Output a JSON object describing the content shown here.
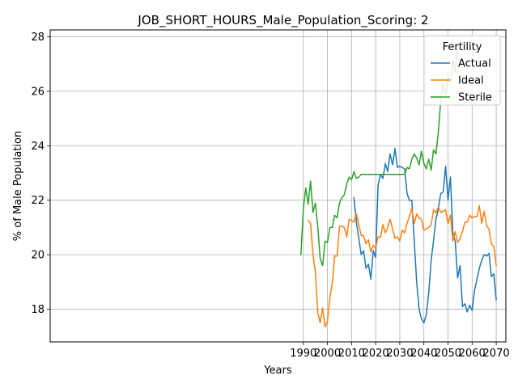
{
  "chart_data": {
    "type": "line",
    "title": "JOB_SHORT_HOURS_Male_Population_Scoring: 2",
    "xlabel": "Years",
    "ylabel": "% of Male Population",
    "xlim": [
      1885,
      2074
    ],
    "ylim": [
      16.8,
      28.25
    ],
    "xticks": [
      1990,
      2000,
      2010,
      2020,
      2030,
      2040,
      2050,
      2060,
      2070
    ],
    "yticks": [
      18,
      20,
      22,
      24,
      26,
      28
    ],
    "grid": true,
    "legend": {
      "title": "Fertility",
      "placement": "top-right"
    },
    "series": [
      {
        "name": "Actual",
        "color": "#1f77b4",
        "x": [
          2011,
          2012,
          2013,
          2014,
          2015,
          2016,
          2017,
          2018,
          2019,
          2020,
          2021,
          2022,
          2023,
          2024,
          2025,
          2026,
          2027,
          2028,
          2029,
          2030,
          2031,
          2032,
          2033,
          2034,
          2035,
          2036,
          2037,
          2038,
          2039,
          2040,
          2041,
          2042,
          2043,
          2044,
          2045,
          2046,
          2047,
          2048,
          2049,
          2050,
          2051,
          2052,
          2053,
          2054,
          2055,
          2056,
          2057,
          2058,
          2059,
          2060,
          2061,
          2062,
          2063,
          2064,
          2065,
          2066,
          2067,
          2068,
          2069,
          2070
        ],
        "y": [
          22.1,
          21.2,
          20.6,
          20.0,
          20.15,
          19.5,
          19.65,
          19.1,
          20.15,
          19.9,
          22.55,
          22.95,
          22.8,
          23.35,
          23.05,
          23.7,
          23.3,
          23.9,
          23.2,
          23.25,
          23.2,
          23.15,
          22.25,
          22.0,
          22.0,
          20.5,
          19.0,
          18.0,
          17.65,
          17.5,
          17.8,
          18.6,
          19.8,
          20.5,
          21.3,
          21.7,
          22.25,
          22.3,
          23.25,
          22.0,
          22.85,
          20.8,
          20.5,
          19.15,
          19.6,
          18.1,
          18.2,
          17.9,
          18.15,
          17.95,
          18.7,
          19.1,
          19.5,
          19.8,
          20.0,
          19.95,
          20.05,
          19.2,
          19.3,
          18.35
        ]
      },
      {
        "name": "Ideal",
        "color": "#ff7f0e",
        "x": [
          1992,
          1993,
          1994,
          1995,
          1996,
          1997,
          1998,
          1999,
          2000,
          2001,
          2002,
          2003,
          2004,
          2005,
          2006,
          2007,
          2008,
          2009,
          2010,
          2011,
          2012,
          2013,
          2014,
          2015,
          2016,
          2017,
          2018,
          2019,
          2020,
          2021,
          2022,
          2023,
          2024,
          2025,
          2026,
          2027,
          2028,
          2029,
          2030,
          2031,
          2032,
          2033,
          2034,
          2035,
          2036,
          2037,
          2038,
          2039,
          2040,
          2041,
          2042,
          2043,
          2044,
          2045,
          2046,
          2047,
          2048,
          2049,
          2050,
          2051,
          2052,
          2053,
          2054,
          2055,
          2056,
          2057,
          2058,
          2059,
          2060,
          2061,
          2062,
          2063,
          2064,
          2065,
          2066,
          2067,
          2068,
          2069,
          2070
        ],
        "y": [
          21.25,
          21.15,
          20.0,
          19.35,
          17.85,
          17.5,
          18.05,
          17.35,
          17.55,
          18.4,
          18.95,
          19.95,
          19.95,
          21.05,
          21.05,
          21.0,
          20.65,
          21.3,
          21.25,
          21.2,
          21.5,
          21.1,
          20.7,
          20.7,
          20.4,
          20.55,
          20.1,
          20.35,
          20.25,
          20.65,
          20.65,
          21.1,
          20.8,
          21.0,
          21.3,
          20.95,
          20.6,
          20.65,
          20.5,
          20.9,
          20.8,
          21.15,
          21.4,
          21.7,
          21.15,
          21.5,
          21.35,
          21.3,
          20.9,
          20.95,
          21.0,
          21.1,
          21.65,
          21.55,
          21.75,
          21.55,
          21.6,
          21.65,
          21.15,
          21.45,
          20.5,
          20.85,
          20.45,
          20.6,
          20.85,
          21.2,
          21.2,
          21.45,
          21.35,
          21.4,
          21.4,
          21.8,
          21.15,
          21.6,
          21.05,
          20.95,
          20.4,
          20.3,
          19.6
        ]
      },
      {
        "name": "Sterile",
        "color": "#2ca02c",
        "x": [
          1989,
          1990,
          1991,
          1992,
          1993,
          1994,
          1995,
          1996,
          1997,
          1998,
          1999,
          2000,
          2001,
          2002,
          2003,
          2004,
          2005,
          2006,
          2007,
          2008,
          2009,
          2010,
          2011,
          2012,
          2013,
          2014,
          2015,
          2016,
          2017,
          2018,
          2019,
          2020,
          2021,
          2022,
          2023,
          2024,
          2025,
          2026,
          2027,
          2028,
          2029,
          2030,
          2031,
          2032,
          2033,
          2034,
          2035,
          2036,
          2037,
          2038,
          2039,
          2040,
          2041,
          2042,
          2043,
          2044,
          2045,
          2046,
          2047,
          2048,
          2049,
          2050,
          2051,
          2052,
          2053,
          2054
        ],
        "y": [
          20.0,
          21.7,
          22.45,
          21.85,
          22.7,
          21.55,
          21.9,
          21.0,
          19.85,
          19.6,
          20.5,
          20.45,
          21.0,
          21.0,
          21.45,
          21.35,
          21.9,
          22.1,
          22.2,
          22.6,
          22.85,
          22.75,
          23.05,
          22.8,
          22.85,
          22.95,
          22.95,
          22.95,
          22.95,
          22.95,
          22.95,
          22.95,
          22.95,
          22.95,
          22.95,
          22.95,
          22.95,
          22.95,
          22.95,
          22.95,
          22.95,
          22.95,
          22.95,
          22.95,
          23.2,
          23.15,
          23.5,
          23.7,
          23.55,
          23.3,
          23.8,
          23.35,
          23.15,
          23.5,
          23.1,
          23.85,
          23.7,
          24.5,
          25.7,
          26.25,
          25.85,
          26.55,
          26.35,
          27.1,
          26.7,
          27.7
        ]
      }
    ]
  }
}
